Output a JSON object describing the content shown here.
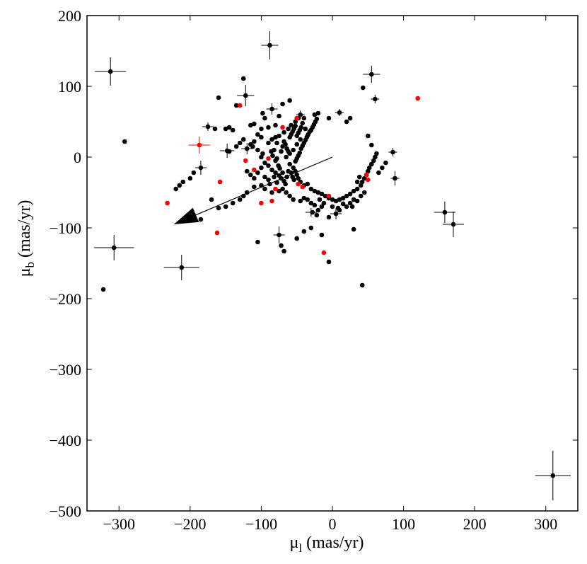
{
  "chart_data": {
    "type": "scatter",
    "title": "",
    "xlabel_symbol": "μ",
    "xlabel_sub": "l",
    "xlabel_unit": " (mas/yr)",
    "ylabel_symbol": "μ",
    "ylabel_sub": "b",
    "ylabel_unit": " (mas/yr)",
    "xlim": [
      -345,
      345
    ],
    "ylim": [
      -500,
      200
    ],
    "xticks": [
      -300,
      -200,
      -100,
      0,
      100,
      200,
      300
    ],
    "yticks": [
      -500,
      -400,
      -300,
      -200,
      -100,
      0,
      100,
      200
    ],
    "colors": {
      "black_series": "#000000",
      "red_series": "#ff0000",
      "frame": "#000000"
    },
    "arrow": {
      "from": [
        0,
        0
      ],
      "to": [
        -223,
        -95
      ]
    },
    "series": [
      {
        "color": "black",
        "points": [
          [
            -312,
            121
          ],
          [
            -88,
            158
          ],
          [
            55,
            117
          ],
          [
            -122,
            87
          ],
          [
            -60,
            80
          ],
          [
            60,
            82
          ],
          [
            43,
            98
          ],
          [
            -135,
            73
          ],
          [
            -85,
            68
          ],
          [
            -70,
            75
          ],
          [
            -45,
            60
          ],
          [
            -40,
            55
          ],
          [
            -25,
            60
          ],
          [
            -20,
            62
          ],
          [
            -5,
            55
          ],
          [
            10,
            63
          ],
          [
            20,
            50
          ],
          [
            25,
            55
          ],
          [
            50,
            30
          ],
          [
            55,
            17
          ],
          [
            -175,
            43
          ],
          [
            -165,
            40
          ],
          [
            -150,
            40
          ],
          [
            -145,
            42
          ],
          [
            -140,
            38
          ],
          [
            -115,
            45
          ],
          [
            -110,
            47
          ],
          [
            -100,
            40
          ],
          [
            -90,
            42
          ],
          [
            -80,
            45
          ],
          [
            -148,
            9
          ],
          [
            -145,
            8
          ],
          [
            -120,
            12
          ],
          [
            -112,
            15
          ],
          [
            -105,
            10
          ],
          [
            -98,
            5
          ],
          [
            -90,
            20
          ],
          [
            -85,
            25
          ],
          [
            -75,
            30
          ],
          [
            -68,
            35
          ],
          [
            -62,
            40
          ],
          [
            -58,
            45
          ],
          [
            -52,
            50
          ],
          [
            -48,
            55
          ],
          [
            -42,
            48
          ],
          [
            -38,
            40
          ],
          [
            -35,
            30
          ],
          [
            -45,
            25
          ],
          [
            -50,
            18
          ],
          [
            -55,
            10
          ],
          [
            -60,
            5
          ],
          [
            -65,
            0
          ],
          [
            -70,
            15
          ],
          [
            -72,
            8
          ],
          [
            -78,
            -2
          ],
          [
            -80,
            -5
          ],
          [
            -82,
            10
          ],
          [
            -60,
            -10
          ],
          [
            -55,
            -15
          ],
          [
            -52,
            -20
          ],
          [
            -50,
            -25
          ],
          [
            -48,
            -30
          ],
          [
            -45,
            -35
          ],
          [
            -40,
            -40
          ],
          [
            -35,
            -38
          ],
          [
            -30,
            -45
          ],
          [
            -25,
            -48
          ],
          [
            -20,
            -50
          ],
          [
            -15,
            -52
          ],
          [
            -10,
            -55
          ],
          [
            -5,
            -58
          ],
          [
            0,
            -60
          ],
          [
            5,
            -62
          ],
          [
            10,
            -60
          ],
          [
            15,
            -58
          ],
          [
            20,
            -55
          ],
          [
            25,
            -52
          ],
          [
            30,
            -48
          ],
          [
            35,
            -45
          ],
          [
            40,
            -40
          ],
          [
            42,
            -35
          ],
          [
            45,
            -30
          ],
          [
            48,
            -25
          ],
          [
            50,
            -20
          ],
          [
            52,
            -15
          ],
          [
            55,
            -10
          ],
          [
            58,
            -5
          ],
          [
            60,
            0
          ],
          [
            62,
            5
          ],
          [
            75,
            -8
          ],
          [
            85,
            7
          ],
          [
            88,
            -30
          ],
          [
            70,
            -15
          ],
          [
            65,
            -22
          ],
          [
            38,
            -28
          ],
          [
            35,
            -35
          ],
          [
            45,
            -50
          ],
          [
            40,
            -55
          ],
          [
            30,
            -60
          ],
          [
            20,
            -70
          ],
          [
            10,
            -75
          ],
          [
            5,
            -80
          ],
          [
            -5,
            -85
          ],
          [
            -15,
            -70
          ],
          [
            -20,
            -75
          ],
          [
            -25,
            -68
          ],
          [
            -30,
            -65
          ],
          [
            -35,
            -60
          ],
          [
            -40,
            -58
          ],
          [
            -45,
            -62
          ],
          [
            -55,
            -60
          ],
          [
            -60,
            -55
          ],
          [
            -65,
            -50
          ],
          [
            -70,
            -45
          ],
          [
            -75,
            -48
          ],
          [
            -85,
            -50
          ],
          [
            -95,
            -45
          ],
          [
            -100,
            -40
          ],
          [
            -110,
            -42
          ],
          [
            -120,
            -50
          ],
          [
            -125,
            -55
          ],
          [
            -130,
            -60
          ],
          [
            -140,
            -65
          ],
          [
            -150,
            -70
          ],
          [
            -160,
            -72
          ],
          [
            -170,
            -60
          ],
          [
            -185,
            -15
          ],
          [
            -195,
            -22
          ],
          [
            -200,
            -30
          ],
          [
            -210,
            -35
          ],
          [
            -215,
            -40
          ],
          [
            -220,
            -45
          ],
          [
            -185,
            -88
          ],
          [
            -105,
            -120
          ],
          [
            -75,
            -110
          ],
          [
            -72,
            -125
          ],
          [
            -68,
            -133
          ],
          [
            -50,
            -115
          ],
          [
            -40,
            -105
          ],
          [
            -30,
            -100
          ],
          [
            -15,
            -110
          ],
          [
            -5,
            -148
          ],
          [
            30,
            -102
          ],
          [
            42,
            -181
          ],
          [
            -322,
            -187
          ],
          [
            -307,
            -128
          ],
          [
            -212,
            -156
          ],
          [
            -292,
            22
          ],
          [
            -160,
            84
          ],
          [
            -125,
            111
          ],
          [
            -100,
            0
          ],
          [
            -95,
            -8
          ],
          [
            -90,
            -12
          ],
          [
            -85,
            -18
          ],
          [
            -80,
            -22
          ],
          [
            -75,
            -26
          ],
          [
            -72,
            -30
          ],
          [
            -68,
            -34
          ],
          [
            -66,
            -38
          ],
          [
            -64,
            -28
          ],
          [
            -62,
            -20
          ],
          [
            -58,
            -22
          ],
          [
            -56,
            -28
          ],
          [
            -54,
            -32
          ],
          [
            -52,
            -6
          ],
          [
            -50,
            -2
          ],
          [
            -48,
            2
          ],
          [
            -46,
            6
          ],
          [
            -44,
            12
          ],
          [
            -42,
            16
          ],
          [
            -40,
            20
          ],
          [
            -38,
            24
          ],
          [
            -36,
            28
          ],
          [
            -34,
            32
          ],
          [
            -32,
            36
          ],
          [
            -30,
            38
          ],
          [
            -28,
            42
          ],
          [
            -26,
            46
          ],
          [
            -24,
            50
          ],
          [
            -22,
            54
          ],
          [
            -120,
            -20
          ],
          [
            -115,
            -25
          ],
          [
            -110,
            -30
          ],
          [
            -105,
            -22
          ],
          [
            -100,
            -15
          ],
          [
            -95,
            -28
          ],
          [
            -90,
            -32
          ],
          [
            -88,
            -38
          ],
          [
            -86,
            8
          ],
          [
            -84,
            2
          ],
          [
            -82,
            -28
          ],
          [
            -78,
            -36
          ],
          [
            -76,
            -12
          ],
          [
            -74,
            -16
          ],
          [
            -70,
            -22
          ],
          [
            -68,
            22
          ],
          [
            -66,
            18
          ],
          [
            -64,
            12
          ],
          [
            -62,
            8
          ],
          [
            -60,
            28
          ],
          [
            -58,
            32
          ],
          [
            -56,
            36
          ],
          [
            -54,
            40
          ],
          [
            -52,
            44
          ],
          [
            -50,
            30
          ],
          [
            -48,
            34
          ],
          [
            -46,
            38
          ],
          [
            -44,
            42
          ],
          [
            -78,
            20
          ],
          [
            -80,
            28
          ],
          [
            -100,
            28
          ],
          [
            -105,
            32
          ],
          [
            -110,
            22
          ],
          [
            -115,
            18
          ],
          [
            -125,
            25
          ],
          [
            -130,
            20
          ],
          [
            -135,
            15
          ],
          [
            -95,
            55
          ],
          [
            -98,
            62
          ],
          [
            -75,
            58
          ],
          [
            -28,
            -78
          ],
          [
            -22,
            -82
          ],
          [
            -18,
            -60
          ],
          [
            -12,
            -65
          ],
          [
            0,
            -70
          ],
          [
            8,
            -72
          ],
          [
            15,
            -66
          ],
          [
            25,
            -65
          ],
          [
            28,
            -70
          ],
          [
            35,
            -62
          ],
          [
            158,
            -78
          ],
          [
            170,
            -95
          ],
          [
            310,
            -450
          ]
        ]
      },
      {
        "color": "red",
        "points": [
          [
            -187,
            17
          ],
          [
            120,
            83
          ],
          [
            -130,
            73
          ],
          [
            -232,
            -65
          ],
          [
            -158,
            -35
          ],
          [
            -162,
            -107
          ],
          [
            -12,
            -135
          ],
          [
            -85,
            -62
          ],
          [
            -90,
            -2
          ],
          [
            -110,
            -18
          ],
          [
            -122,
            -5
          ],
          [
            -48,
            -38
          ],
          [
            -42,
            -42
          ],
          [
            -5,
            -55
          ],
          [
            48,
            -25
          ],
          [
            50,
            -32
          ],
          [
            -80,
            -45
          ],
          [
            -50,
            55
          ],
          [
            -70,
            42
          ],
          [
            -100,
            -65
          ]
        ]
      }
    ],
    "errorbars": [
      {
        "x": -312,
        "y": 121,
        "xerr": 22,
        "yerr": 20,
        "color": "black"
      },
      {
        "x": -88,
        "y": 158,
        "xerr": 12,
        "yerr": 20,
        "color": "black"
      },
      {
        "x": 55,
        "y": 117,
        "xerr": 12,
        "yerr": 12,
        "color": "black"
      },
      {
        "x": -122,
        "y": 87,
        "xerr": 12,
        "yerr": 15,
        "color": "black"
      },
      {
        "x": 60,
        "y": 82,
        "xerr": 6,
        "yerr": 6,
        "color": "black"
      },
      {
        "x": -85,
        "y": 68,
        "xerr": 8,
        "yerr": 8,
        "color": "black"
      },
      {
        "x": -45,
        "y": 60,
        "xerr": 6,
        "yerr": 6,
        "color": "black"
      },
      {
        "x": 10,
        "y": 63,
        "xerr": 6,
        "yerr": 5,
        "color": "black"
      },
      {
        "x": -175,
        "y": 43,
        "xerr": 8,
        "yerr": 6,
        "color": "black"
      },
      {
        "x": -148,
        "y": 9,
        "xerr": 10,
        "yerr": 10,
        "color": "black"
      },
      {
        "x": -120,
        "y": 12,
        "xerr": 8,
        "yerr": 8,
        "color": "black"
      },
      {
        "x": -185,
        "y": -15,
        "xerr": 8,
        "yerr": 10,
        "color": "black"
      },
      {
        "x": 85,
        "y": 7,
        "xerr": 6,
        "yerr": 6,
        "color": "black"
      },
      {
        "x": 88,
        "y": -30,
        "xerr": 6,
        "yerr": 10,
        "color": "black"
      },
      {
        "x": -307,
        "y": -128,
        "xerr": 28,
        "yerr": 18,
        "color": "black"
      },
      {
        "x": -212,
        "y": -156,
        "xerr": 25,
        "yerr": 18,
        "color": "black"
      },
      {
        "x": -75,
        "y": -110,
        "xerr": 8,
        "yerr": 12,
        "color": "black"
      },
      {
        "x": 158,
        "y": -78,
        "xerr": 15,
        "yerr": 15,
        "color": "black"
      },
      {
        "x": 170,
        "y": -95,
        "xerr": 15,
        "yerr": 18,
        "color": "black"
      },
      {
        "x": 310,
        "y": -450,
        "xerr": 25,
        "yerr": 35,
        "color": "black"
      },
      {
        "x": -187,
        "y": 17,
        "xerr": 15,
        "yerr": 12,
        "color": "red"
      },
      {
        "x": -30,
        "y": -78,
        "xerr": 8,
        "yerr": 6,
        "color": "black"
      },
      {
        "x": 5,
        "y": -80,
        "xerr": 8,
        "yerr": 8,
        "color": "black"
      }
    ]
  }
}
